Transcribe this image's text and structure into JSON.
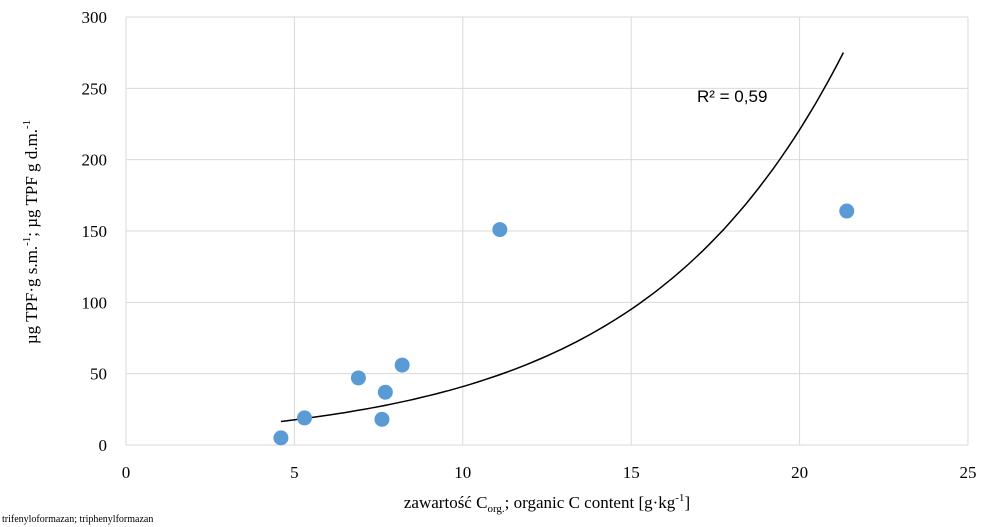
{
  "chart_data": {
    "type": "scatter",
    "x": [
      4.6,
      5.3,
      6.9,
      7.6,
      7.7,
      8.2,
      11.1,
      21.4
    ],
    "y": [
      5,
      19,
      47,
      18,
      37,
      56,
      151,
      164
    ],
    "xlim": [
      0,
      25
    ],
    "ylim": [
      0,
      300
    ],
    "x_ticks": [
      0,
      5,
      10,
      15,
      20,
      25
    ],
    "y_ticks": [
      0,
      50,
      100,
      150,
      200,
      250,
      300
    ],
    "grid": true,
    "point_color": "#5b9bd5",
    "trendline": {
      "type": "exponential",
      "a": 7.6,
      "b": 0.1685,
      "x_range": [
        4.6,
        21.3
      ],
      "color": "#000000",
      "annotation": "R² = 0,59"
    },
    "ylabel": {
      "part1": "µg TPF·g s.m.",
      "sup1": "-1",
      "part2": "; µg TPF g d.m.",
      "sup2": "-1"
    },
    "xlabel": {
      "part1": "zawartość C",
      "sub1": "org.",
      "part2": "; organic C content [g·kg",
      "sup1": "-1",
      "part3": "]"
    }
  },
  "footnote": "trifenyloformazan; triphenylformazan"
}
